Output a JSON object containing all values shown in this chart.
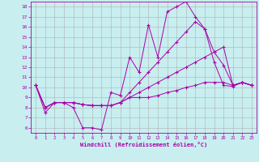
{
  "xlabel": "Windchill (Refroidissement éolien,°C)",
  "background_color": "#c8eef0",
  "grid_color": "#b0b0b0",
  "line_color": "#aa00aa",
  "xlim": [
    -0.5,
    23.5
  ],
  "ylim": [
    5.5,
    18.5
  ],
  "xticks": [
    0,
    1,
    2,
    3,
    4,
    5,
    6,
    7,
    8,
    9,
    10,
    11,
    12,
    13,
    14,
    15,
    16,
    17,
    18,
    19,
    20,
    21,
    22,
    23
  ],
  "yticks": [
    6,
    7,
    8,
    9,
    10,
    11,
    12,
    13,
    14,
    15,
    16,
    17,
    18
  ],
  "curve1_x": [
    0,
    1,
    2,
    3,
    4,
    5,
    6,
    7,
    8,
    9,
    10,
    11,
    12,
    13,
    14,
    15,
    16,
    17,
    18,
    19,
    20,
    21,
    22,
    23
  ],
  "curve1_y": [
    10.2,
    7.5,
    8.5,
    8.5,
    8.0,
    6.0,
    6.0,
    5.8,
    9.5,
    9.2,
    13.0,
    11.5,
    16.2,
    13.0,
    17.5,
    18.0,
    18.5,
    17.0,
    15.8,
    12.5,
    10.2,
    10.1,
    10.5,
    10.2
  ],
  "curve2_x": [
    0,
    1,
    2,
    3,
    4,
    5,
    6,
    7,
    8,
    9,
    10,
    11,
    12,
    13,
    14,
    15,
    16,
    17,
    18,
    19,
    20,
    21,
    22,
    23
  ],
  "curve2_y": [
    10.2,
    8.0,
    8.5,
    8.5,
    8.5,
    8.3,
    8.2,
    8.2,
    8.2,
    8.5,
    9.0,
    9.5,
    10.0,
    10.5,
    11.0,
    11.5,
    12.0,
    12.5,
    13.0,
    13.5,
    14.0,
    10.2,
    10.5,
    10.2
  ],
  "curve3_x": [
    0,
    1,
    2,
    3,
    4,
    5,
    6,
    7,
    8,
    9,
    10,
    11,
    12,
    13,
    14,
    15,
    16,
    17,
    18,
    19,
    20,
    21,
    22,
    23
  ],
  "curve3_y": [
    10.2,
    8.0,
    8.5,
    8.5,
    8.5,
    8.3,
    8.2,
    8.2,
    8.2,
    8.5,
    9.5,
    10.5,
    11.5,
    12.5,
    13.5,
    14.5,
    15.5,
    16.5,
    15.8,
    13.5,
    12.2,
    10.2,
    10.5,
    10.2
  ],
  "curve4_x": [
    0,
    1,
    2,
    3,
    4,
    5,
    6,
    7,
    8,
    9,
    10,
    11,
    12,
    13,
    14,
    15,
    16,
    17,
    18,
    19,
    20,
    21,
    22,
    23
  ],
  "curve4_y": [
    10.2,
    8.0,
    8.5,
    8.5,
    8.5,
    8.3,
    8.2,
    8.2,
    8.2,
    8.5,
    9.0,
    9.0,
    9.0,
    9.2,
    9.5,
    9.7,
    10.0,
    10.2,
    10.5,
    10.5,
    10.5,
    10.2,
    10.5,
    10.2
  ]
}
